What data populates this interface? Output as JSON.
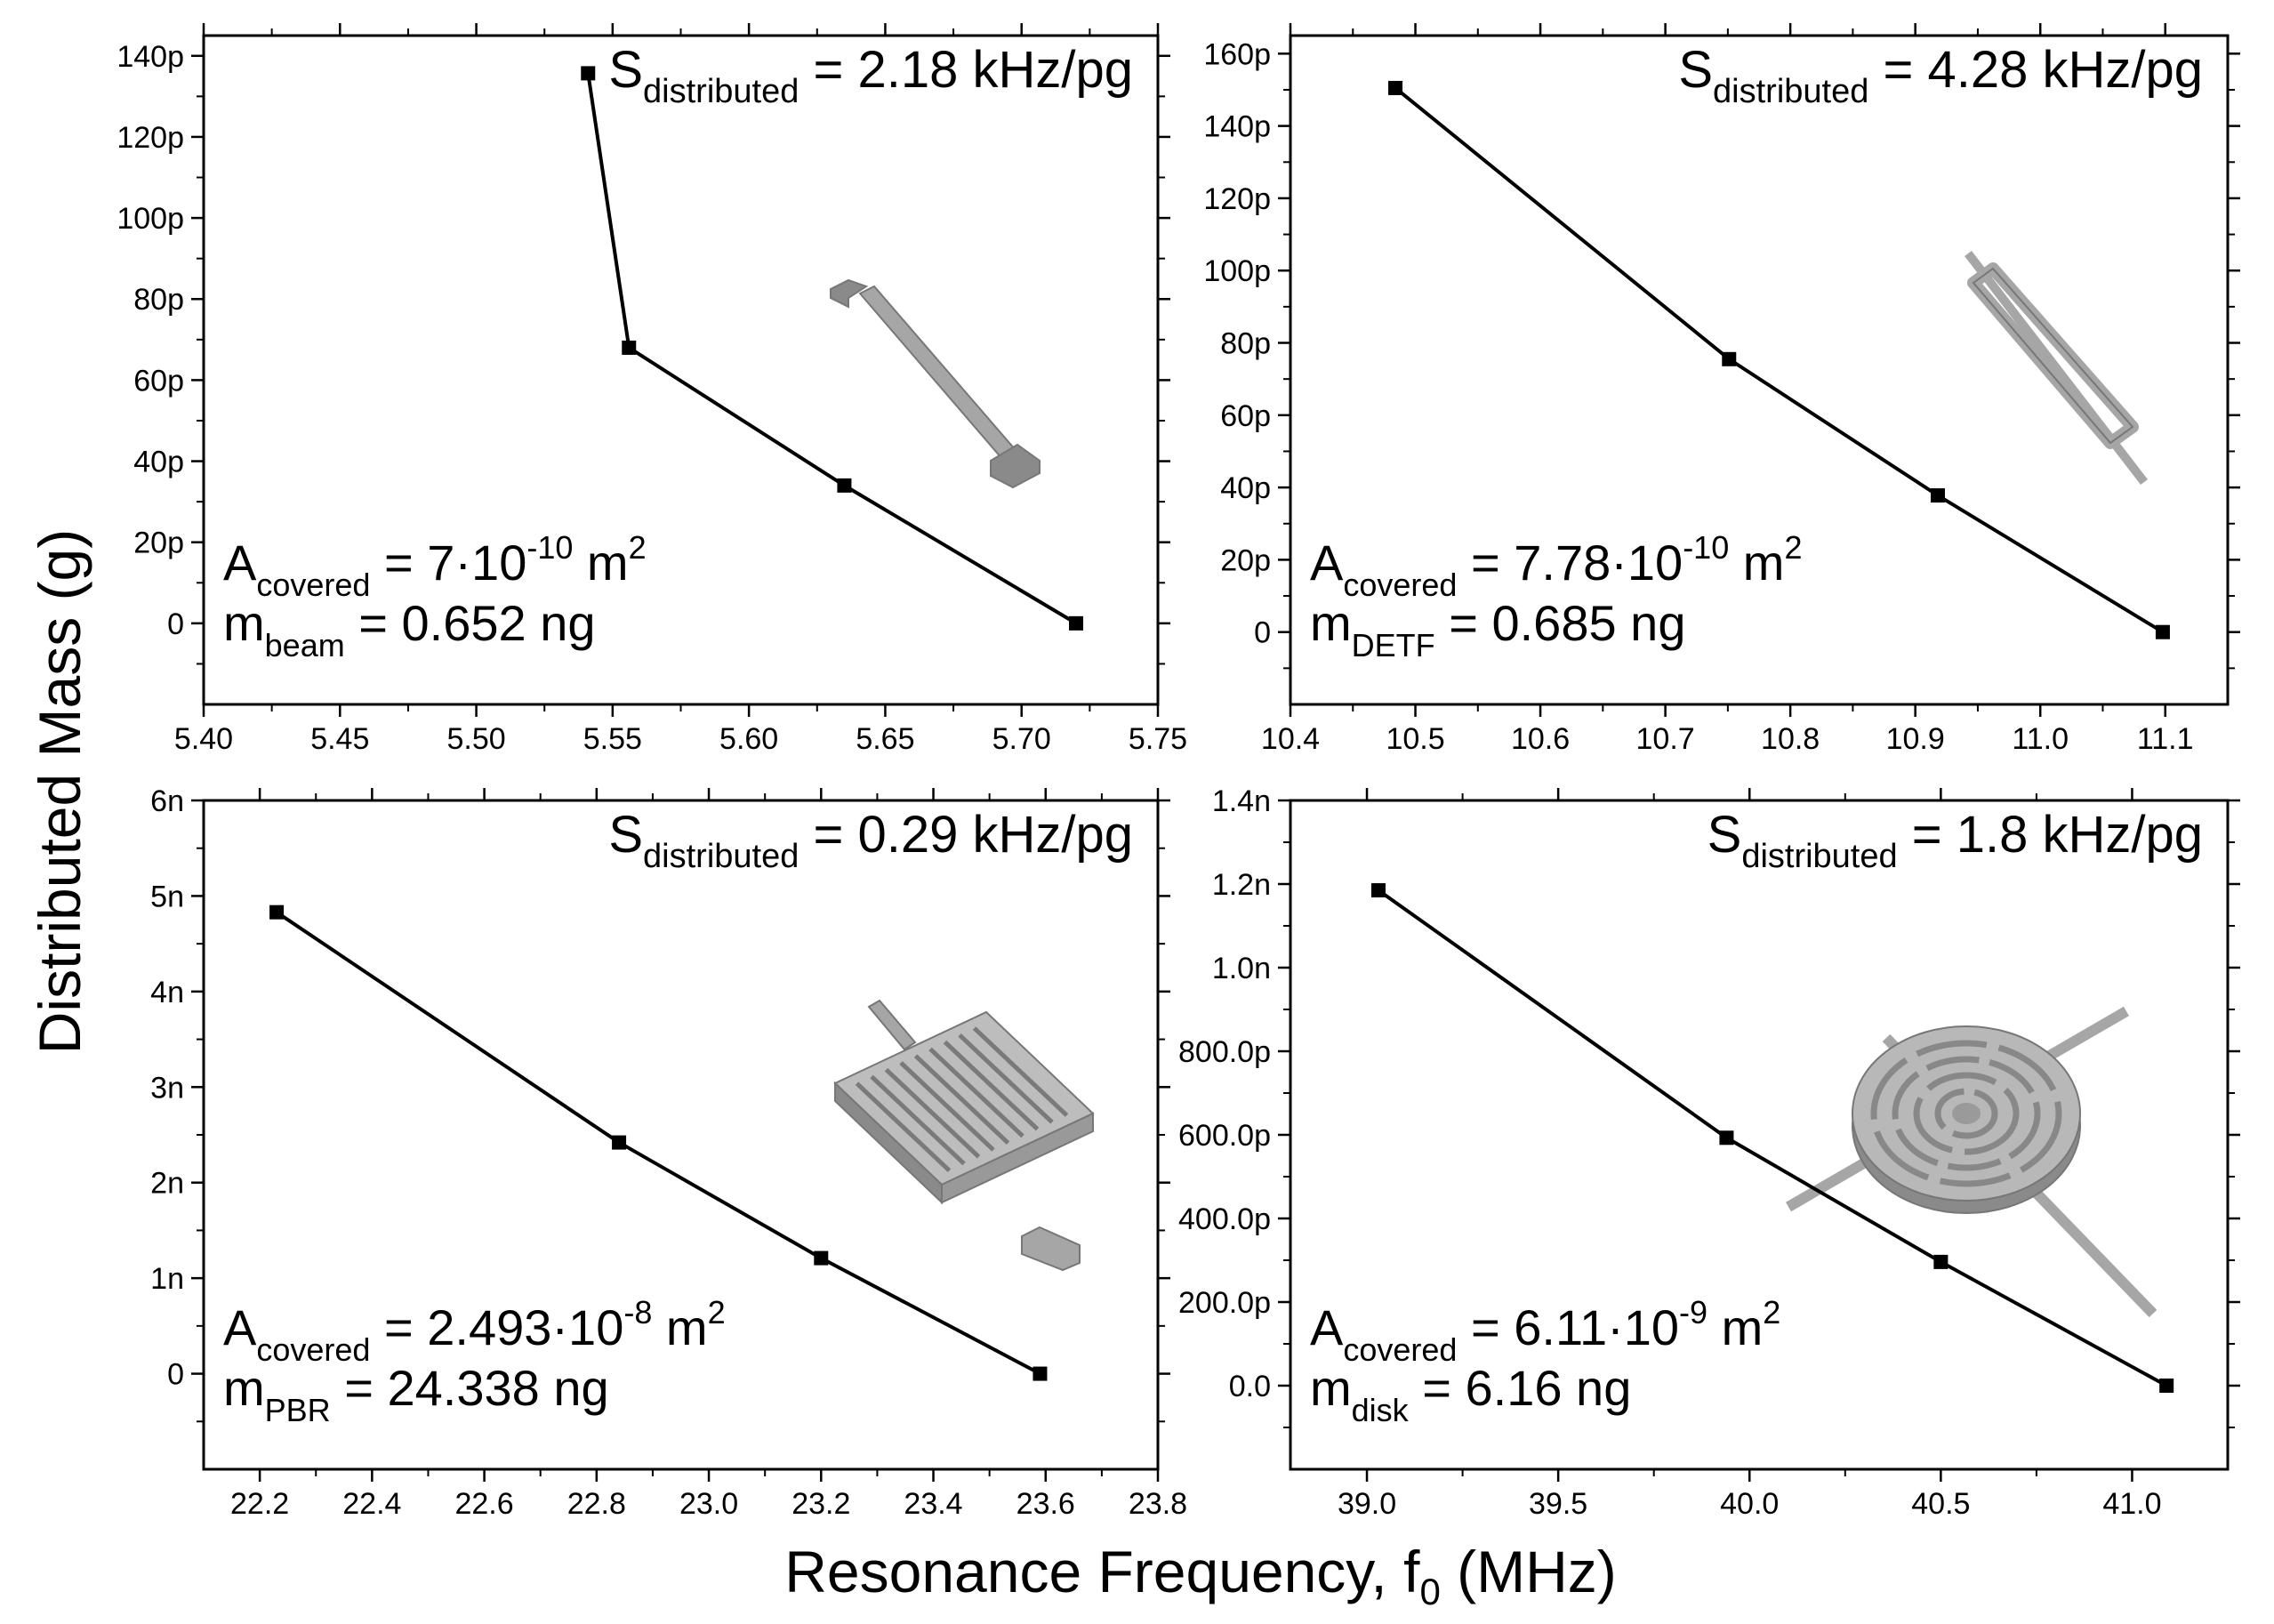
{
  "figure": {
    "ylabel": "Distributed Mass (g)",
    "xlabel_main": "Resonance Frequency, f",
    "xlabel_sub": "0",
    "xlabel_unit": " (MHz)"
  },
  "chart_data": [
    {
      "id": "beam",
      "type": "line",
      "x": [
        5.541,
        5.556,
        5.635,
        5.72
      ],
      "y": [
        1.357e-10,
        6.8e-11,
        3.4e-11,
        0
      ],
      "xlim": [
        5.4,
        5.75
      ],
      "ylim": [
        -2e-11,
        1.45e-10
      ],
      "xticks": [
        5.4,
        5.45,
        5.5,
        5.55,
        5.6,
        5.65,
        5.7,
        5.75
      ],
      "xtick_labels": [
        "5.40",
        "5.45",
        "5.50",
        "5.55",
        "5.60",
        "5.65",
        "5.70",
        "5.75"
      ],
      "yticks": [
        0,
        2e-11,
        4e-11,
        6e-11,
        8e-11,
        1e-10,
        1.2e-10,
        1.4e-10
      ],
      "ytick_labels": [
        "0",
        "20p",
        "40p",
        "60p",
        "80p",
        "100p",
        "120p",
        "140p"
      ],
      "sens_main": "S",
      "sens_sub": "distributed",
      "sens_value": " = 2.18 kHz/pg",
      "area_main": "A",
      "area_sub": "covered",
      "area_value": " = 7·10",
      "area_exp": "-10",
      "area_unit": " m",
      "area_unit_exp": "2",
      "mass_main": "m",
      "mass_sub": "beam",
      "mass_value": " = 0.652 ng",
      "device": "beam"
    },
    {
      "id": "detf",
      "type": "line",
      "x": [
        10.484,
        10.751,
        10.918,
        11.098
      ],
      "y": [
        1.505e-10,
        7.55e-11,
        3.78e-11,
        0
      ],
      "xlim": [
        10.4,
        11.15
      ],
      "ylim": [
        -2e-11,
        1.65e-10
      ],
      "xticks": [
        10.4,
        10.5,
        10.6,
        10.7,
        10.8,
        10.9,
        11.0,
        11.1
      ],
      "xtick_labels": [
        "10.4",
        "10.5",
        "10.6",
        "10.7",
        "10.8",
        "10.9",
        "11.0",
        "11.1"
      ],
      "yticks": [
        0,
        2e-11,
        4e-11,
        6e-11,
        8e-11,
        1e-10,
        1.2e-10,
        1.4e-10,
        1.6e-10
      ],
      "ytick_labels": [
        "0",
        "20p",
        "40p",
        "60p",
        "80p",
        "100p",
        "120p",
        "140p",
        "160p"
      ],
      "sens_main": "S",
      "sens_sub": "distributed",
      "sens_value": " = 4.28 kHz/pg",
      "area_main": "A",
      "area_sub": "covered",
      "area_value": " = 7.78·10",
      "area_exp": "-10",
      "area_unit": " m",
      "area_unit_exp": "2",
      "mass_main": "m",
      "mass_sub": "DETF",
      "mass_value": " = 0.685 ng",
      "device": "detf"
    },
    {
      "id": "pbr",
      "type": "line",
      "x": [
        22.23,
        22.84,
        23.2,
        23.59
      ],
      "y": [
        4.83e-09,
        2.42e-09,
        1.21e-09,
        0
      ],
      "xlim": [
        22.1,
        23.8
      ],
      "ylim": [
        -1e-09,
        6e-09
      ],
      "xticks": [
        22.2,
        22.4,
        22.6,
        22.8,
        23.0,
        23.2,
        23.4,
        23.6,
        23.8
      ],
      "xtick_labels": [
        "22.2",
        "22.4",
        "22.6",
        "22.8",
        "23.0",
        "23.2",
        "23.4",
        "23.6",
        "23.8"
      ],
      "yticks": [
        0,
        1e-09,
        2e-09,
        3e-09,
        4e-09,
        5e-09,
        6e-09
      ],
      "ytick_labels": [
        "0",
        "1n",
        "2n",
        "3n",
        "4n",
        "5n",
        "6n"
      ],
      "sens_main": "S",
      "sens_sub": "distributed",
      "sens_value": " = 0.29 kHz/pg",
      "area_main": "A",
      "area_sub": "covered",
      "area_value": " = 2.493·10",
      "area_exp": "-8",
      "area_unit": " m",
      "area_unit_exp": "2",
      "mass_main": "m",
      "mass_sub": "PBR",
      "mass_value": " = 24.338 ng",
      "device": "pbr"
    },
    {
      "id": "disk",
      "type": "line",
      "x": [
        39.03,
        39.94,
        40.5,
        41.09
      ],
      "y": [
        1.185e-09,
        5.93e-10,
        2.96e-10,
        0
      ],
      "xlim": [
        38.8,
        41.25
      ],
      "ylim": [
        -2e-10,
        1.4e-09
      ],
      "xticks": [
        39.0,
        39.5,
        40.0,
        40.5,
        41.0
      ],
      "xtick_labels": [
        "39.0",
        "39.5",
        "40.0",
        "40.5",
        "41.0"
      ],
      "yticks": [
        0,
        2e-10,
        4e-10,
        6e-10,
        8e-10,
        1e-09,
        1.2e-09,
        1.4e-09
      ],
      "ytick_labels": [
        "0.0",
        "200.0p",
        "400.0p",
        "600.0p",
        "800.0p",
        "1.0n",
        "1.2n",
        "1.4n"
      ],
      "sens_main": "S",
      "sens_sub": "distributed",
      "sens_value": " = 1.8 kHz/pg",
      "area_main": "A",
      "area_sub": "covered",
      "area_value": " = 6.11·10",
      "area_exp": "-9",
      "area_unit": " m",
      "area_unit_exp": "2",
      "mass_main": "m",
      "mass_sub": "disk",
      "mass_value": " = 6.16 ng",
      "device": "disk"
    }
  ]
}
